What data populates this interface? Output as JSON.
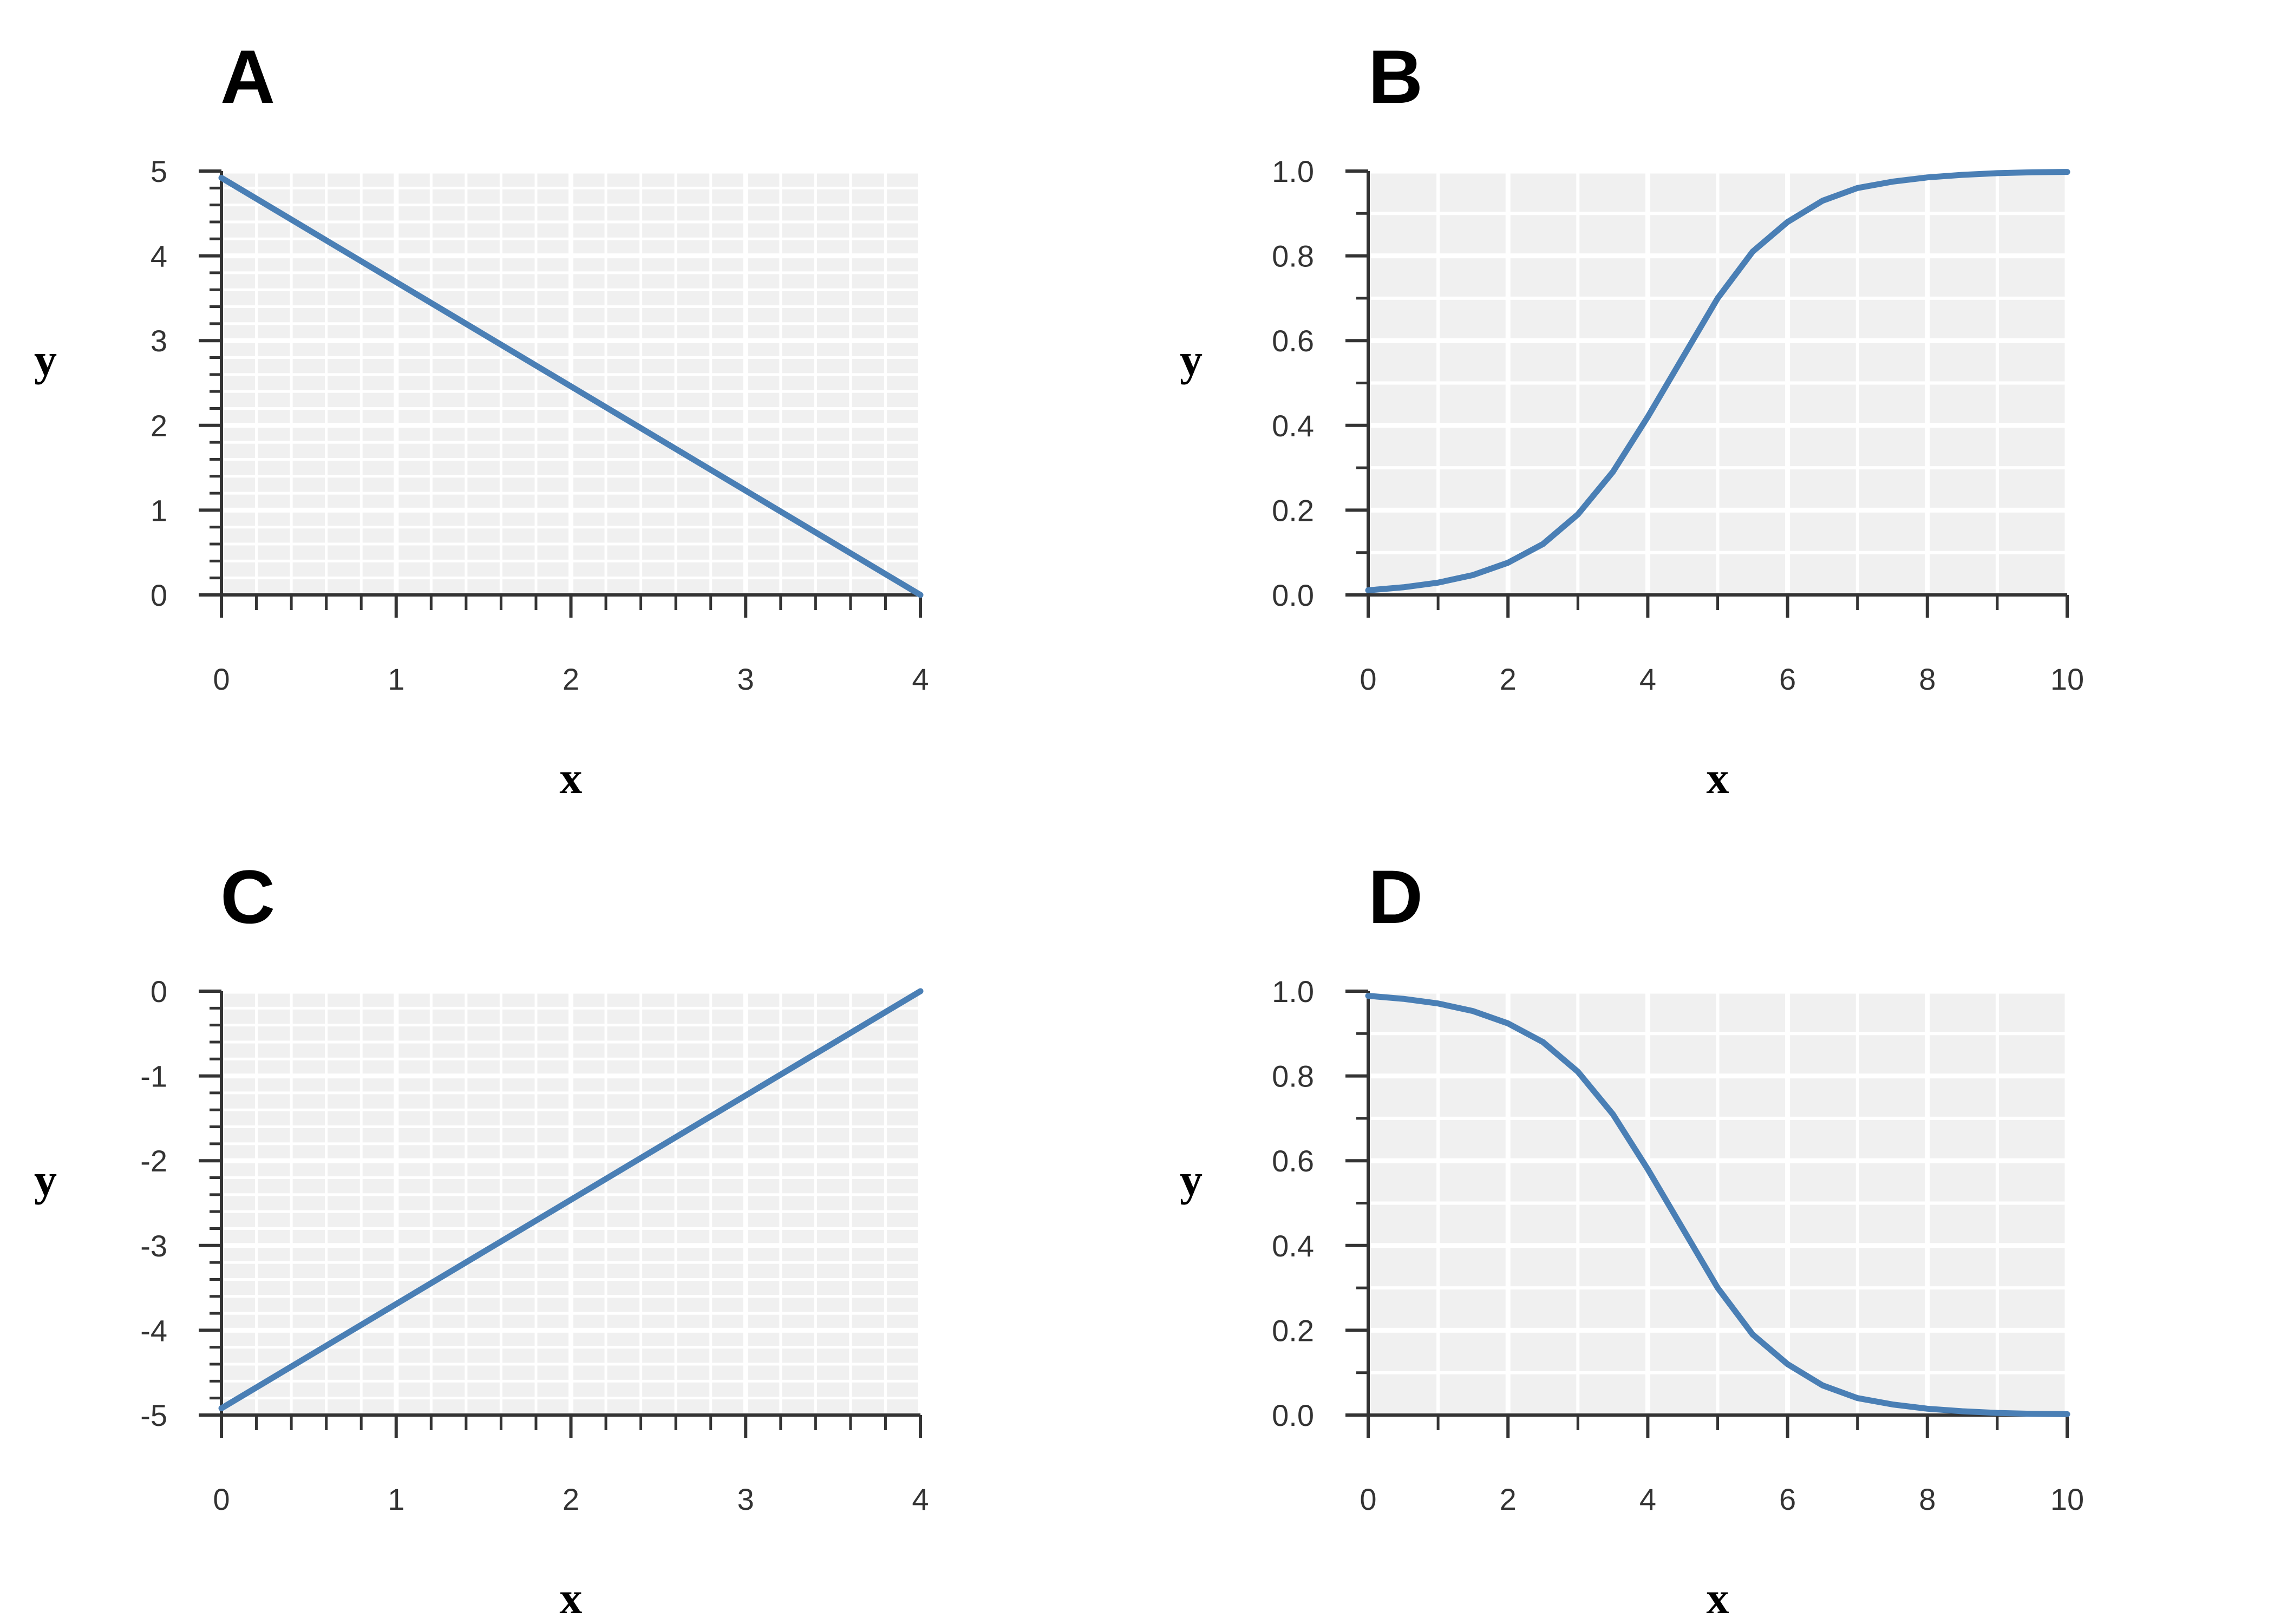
{
  "colors": {
    "line": "#4a7fb5",
    "panel_bg": "#f0f0f0",
    "grid": "#ffffff",
    "axis": "#333333"
  },
  "chart_data": [
    {
      "type": "line",
      "panel_label": "A",
      "xlabel": "x",
      "ylabel": "y",
      "xlim": [
        0,
        4
      ],
      "ylim": [
        0,
        5
      ],
      "xticks": [
        0,
        1,
        2,
        3,
        4
      ],
      "xtick_labels": [
        "0",
        "1",
        "2",
        "3",
        "4"
      ],
      "yticks": [
        0,
        1,
        2,
        3,
        4,
        5
      ],
      "ytick_labels": [
        "0",
        "1",
        "2",
        "3",
        "4",
        "5"
      ],
      "x_minor_step": 0.2,
      "y_minor_step": 0.2,
      "grid": true,
      "series": [
        {
          "x": [
            0,
            4
          ],
          "y": [
            4.92,
            0
          ]
        }
      ]
    },
    {
      "type": "line",
      "panel_label": "B",
      "xlabel": "x",
      "ylabel": "y",
      "xlim": [
        0,
        10
      ],
      "ylim": [
        0,
        1
      ],
      "xticks": [
        0,
        2,
        4,
        6,
        8,
        10
      ],
      "xtick_labels": [
        "0",
        "2",
        "4",
        "6",
        "8",
        "10"
      ],
      "yticks": [
        0,
        0.2,
        0.4,
        0.6,
        0.8,
        1.0
      ],
      "ytick_labels": [
        "0.0",
        "0.2",
        "0.4",
        "0.6",
        "0.8",
        "1.0"
      ],
      "x_minor_step": 1,
      "y_minor_step": 0.1,
      "grid": true,
      "series": [
        {
          "x": [
            0,
            0.5,
            1,
            1.5,
            2,
            2.5,
            3,
            3.5,
            4,
            4.5,
            5,
            5.5,
            6,
            6.5,
            7,
            7.5,
            8,
            8.5,
            9,
            9.5,
            10
          ],
          "y": [
            0.011,
            0.018,
            0.029,
            0.047,
            0.076,
            0.12,
            0.19,
            0.29,
            0.42,
            0.56,
            0.7,
            0.81,
            0.88,
            0.93,
            0.96,
            0.975,
            0.985,
            0.991,
            0.995,
            0.997,
            0.998
          ]
        }
      ]
    },
    {
      "type": "line",
      "panel_label": "C",
      "xlabel": "x",
      "ylabel": "y",
      "xlim": [
        0,
        4
      ],
      "ylim": [
        -5,
        0
      ],
      "xticks": [
        0,
        1,
        2,
        3,
        4
      ],
      "xtick_labels": [
        "0",
        "1",
        "2",
        "3",
        "4"
      ],
      "yticks": [
        -5,
        -4,
        -3,
        -2,
        -1,
        0
      ],
      "ytick_labels": [
        "-5",
        "-4",
        "-3",
        "-2",
        "-1",
        "0"
      ],
      "x_minor_step": 0.2,
      "y_minor_step": 0.2,
      "grid": true,
      "series": [
        {
          "x": [
            0,
            4
          ],
          "y": [
            -4.92,
            0
          ]
        }
      ]
    },
    {
      "type": "line",
      "panel_label": "D",
      "xlabel": "x",
      "ylabel": "y",
      "xlim": [
        0,
        10
      ],
      "ylim": [
        0,
        1
      ],
      "xticks": [
        0,
        2,
        4,
        6,
        8,
        10
      ],
      "xtick_labels": [
        "0",
        "2",
        "4",
        "6",
        "8",
        "10"
      ],
      "yticks": [
        0,
        0.2,
        0.4,
        0.6,
        0.8,
        1.0
      ],
      "ytick_labels": [
        "0.0",
        "0.2",
        "0.4",
        "0.6",
        "0.8",
        "1.0"
      ],
      "x_minor_step": 1,
      "y_minor_step": 0.1,
      "grid": true,
      "series": [
        {
          "x": [
            0,
            0.5,
            1,
            1.5,
            2,
            2.5,
            3,
            3.5,
            4,
            4.5,
            5,
            5.5,
            6,
            6.5,
            7,
            7.5,
            8,
            8.5,
            9,
            9.5,
            10
          ],
          "y": [
            0.989,
            0.982,
            0.971,
            0.953,
            0.924,
            0.88,
            0.81,
            0.71,
            0.58,
            0.44,
            0.3,
            0.19,
            0.12,
            0.07,
            0.04,
            0.025,
            0.015,
            0.009,
            0.005,
            0.003,
            0.002
          ]
        }
      ]
    }
  ]
}
